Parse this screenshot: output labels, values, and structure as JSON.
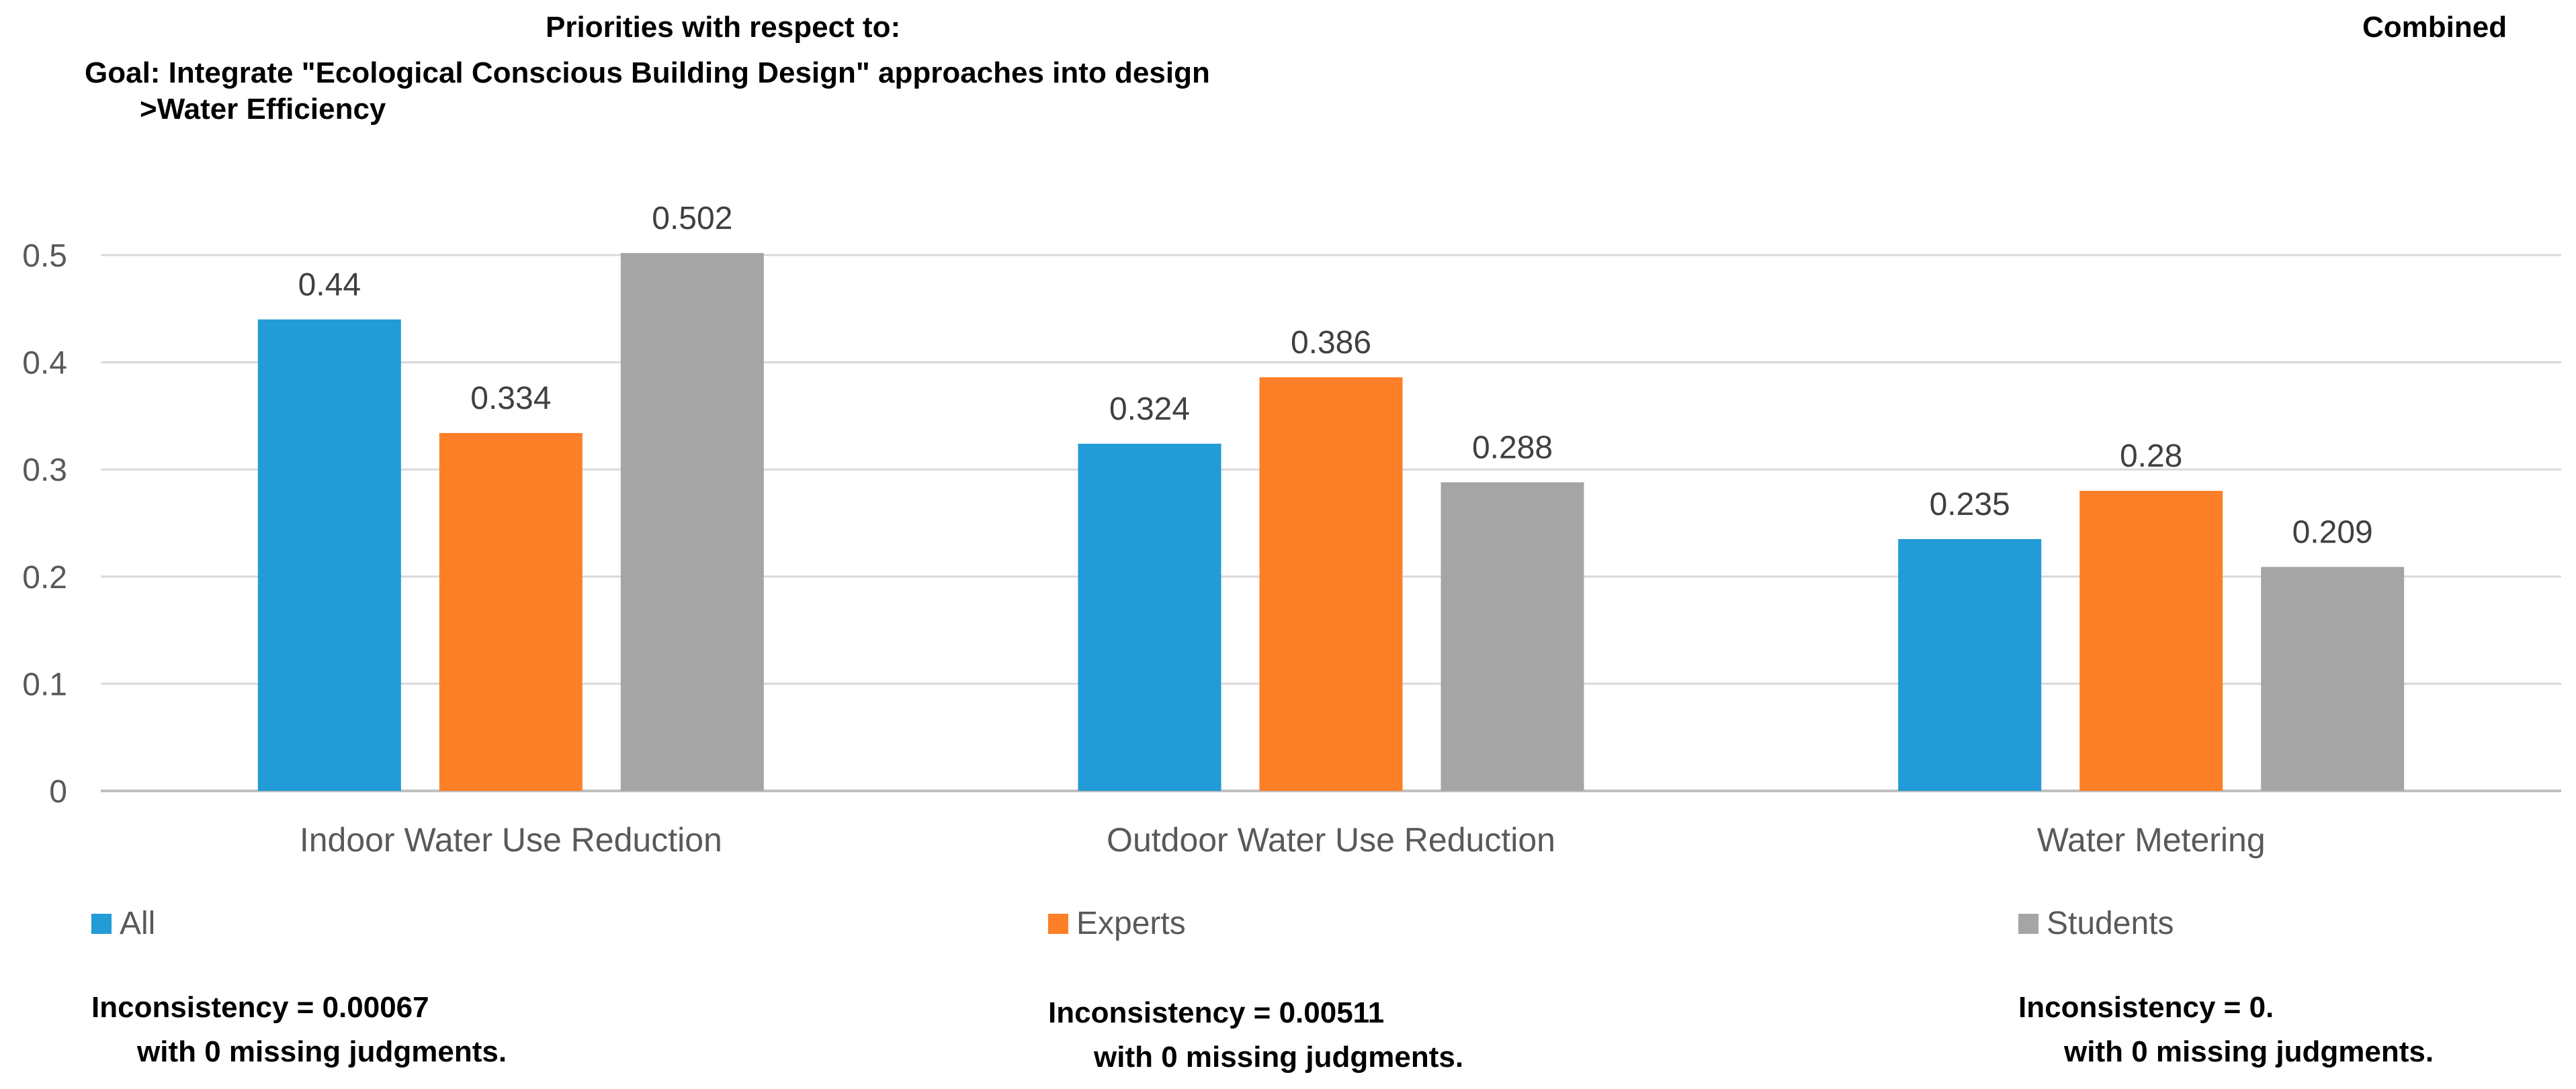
{
  "header": {
    "priorities_label": "Priorities with respect to:",
    "goal": "Goal: Integrate \"Ecological Conscious Building Design\" approaches into design",
    "node": ">Water Efficiency",
    "combined": "Combined"
  },
  "chart_data": {
    "type": "bar",
    "title": "Priorities with respect to: Goal: Integrate \"Ecological Conscious Building Design\" approaches into design >Water Efficiency",
    "categories": [
      "Indoor Water Use Reduction",
      "Outdoor Water Use Reduction",
      "Water Metering"
    ],
    "series": [
      {
        "name": "All",
        "values": [
          0.44,
          0.324,
          0.235
        ],
        "labels": [
          "0.44",
          "0.324",
          "0.235"
        ],
        "color": "#229BD6"
      },
      {
        "name": "Experts",
        "values": [
          0.334,
          0.386,
          0.28
        ],
        "labels": [
          "0.334",
          "0.386",
          "0.28"
        ],
        "color": "#FD7F27"
      },
      {
        "name": "Students",
        "values": [
          0.502,
          0.288,
          0.209
        ],
        "labels": [
          "0.502",
          "0.288",
          "0.209"
        ],
        "color": "#A5A5A5"
      }
    ],
    "ylim": [
      0,
      0.5
    ],
    "yticks": [
      0,
      0.1,
      0.2,
      0.3,
      0.4,
      0.5
    ],
    "ytick_labels": [
      "0",
      "0.1",
      "0.2",
      "0.3",
      "0.4",
      "0.5"
    ],
    "xlabel": "",
    "ylabel": "",
    "grid": true,
    "legend": "bottom"
  },
  "legend": {
    "items": [
      {
        "label": "All",
        "color": "#229BD6"
      },
      {
        "label": "Experts",
        "color": "#FD7F27"
      },
      {
        "label": "Students",
        "color": "#A5A5A5"
      }
    ]
  },
  "inconsistency": [
    {
      "line1": "Inconsistency = 0.00067",
      "line2": "with 0  missing judgments."
    },
    {
      "line1": "Inconsistency = 0.00511",
      "line2": "with 0  missing judgments."
    },
    {
      "line1": "Inconsistency = 0.",
      "line2": "with 0  missing judgments."
    }
  ]
}
